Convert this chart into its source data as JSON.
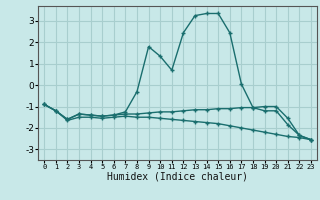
{
  "title": "",
  "xlabel": "Humidex (Indice chaleur)",
  "background_color": "#c8e8e8",
  "grid_color": "#a8cece",
  "line_color": "#1a6e6e",
  "xlim": [
    -0.5,
    23.5
  ],
  "ylim": [
    -3.5,
    3.7
  ],
  "yticks": [
    -3,
    -2,
    -1,
    0,
    1,
    2,
    3
  ],
  "xticks": [
    0,
    1,
    2,
    3,
    4,
    5,
    6,
    7,
    8,
    9,
    10,
    11,
    12,
    13,
    14,
    15,
    16,
    17,
    18,
    19,
    20,
    21,
    22,
    23
  ],
  "series": [
    {
      "x": [
        0,
        1,
        2,
        3,
        4,
        5,
        6,
        7,
        8,
        9,
        10,
        11,
        12,
        13,
        14,
        15,
        16,
        17,
        18,
        19,
        20,
        21,
        22,
        23
      ],
      "y": [
        -0.9,
        -1.2,
        -1.6,
        -1.35,
        -1.4,
        -1.45,
        -1.4,
        -1.25,
        -0.3,
        1.8,
        1.35,
        0.7,
        2.45,
        3.25,
        3.35,
        3.35,
        2.45,
        0.05,
        -1.05,
        -1.2,
        -1.2,
        -1.85,
        -2.35,
        -2.55
      ]
    },
    {
      "x": [
        0,
        1,
        2,
        3,
        4,
        5,
        6,
        7,
        8,
        9,
        10,
        11,
        12,
        13,
        14,
        15,
        16,
        17,
        18,
        19,
        20,
        21,
        22,
        23
      ],
      "y": [
        -0.9,
        -1.2,
        -1.6,
        -1.35,
        -1.4,
        -1.45,
        -1.4,
        -1.35,
        -1.35,
        -1.3,
        -1.25,
        -1.25,
        -1.2,
        -1.15,
        -1.15,
        -1.1,
        -1.1,
        -1.05,
        -1.05,
        -1.0,
        -1.0,
        -1.55,
        -2.35,
        -2.55
      ]
    },
    {
      "x": [
        0,
        1,
        2,
        3,
        4,
        5,
        6,
        7,
        8,
        9,
        10,
        11,
        12,
        13,
        14,
        15,
        16,
        17,
        18,
        19,
        20,
        21,
        22,
        23
      ],
      "y": [
        -0.9,
        -1.2,
        -1.65,
        -1.5,
        -1.5,
        -1.55,
        -1.5,
        -1.45,
        -1.5,
        -1.5,
        -1.55,
        -1.6,
        -1.65,
        -1.7,
        -1.75,
        -1.8,
        -1.9,
        -2.0,
        -2.1,
        -2.2,
        -2.3,
        -2.4,
        -2.45,
        -2.55
      ]
    }
  ]
}
